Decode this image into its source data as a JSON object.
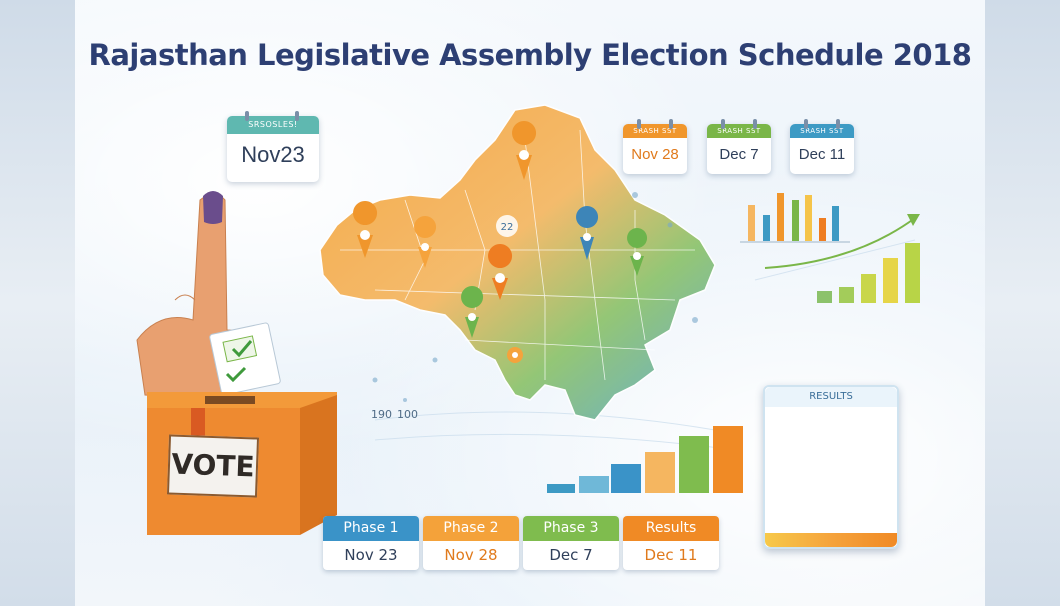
{
  "title": "Rajasthan Legislative Assembly Election Schedule 2018",
  "calendars": [
    {
      "header": "SRSOSLES!",
      "date": "Nov23"
    },
    {
      "header": "SRASH SST",
      "date": "Nov 28"
    },
    {
      "header": "SRASH SST",
      "date": "Dec 7"
    },
    {
      "header": "SRASH SST",
      "date": "Dec 11"
    }
  ],
  "phases": [
    {
      "label": "Phase 1",
      "date": "Nov 23"
    },
    {
      "label": "Phase 2",
      "date": "Nov 28"
    },
    {
      "label": "Phase 3",
      "date": "Dec 7"
    },
    {
      "label": "Results",
      "date": "Dec 11"
    }
  ],
  "ballot_box_label": "VOTE",
  "results_card_title": "RESULTS",
  "map_badges": [
    "22"
  ],
  "misc_numbers": [
    "190",
    "100"
  ],
  "colors": {
    "title": "#2d3f73",
    "phase1": "#3a93c8",
    "phase2": "#f4a23a",
    "phase3": "#7fbc4e",
    "results": "#f08a25",
    "ballot_box": "#ee8a30"
  },
  "icons": [
    "map-pin-icon",
    "checkmark-icon",
    "calendar-icon",
    "bar-chart-icon",
    "trend-arrow-icon"
  ]
}
